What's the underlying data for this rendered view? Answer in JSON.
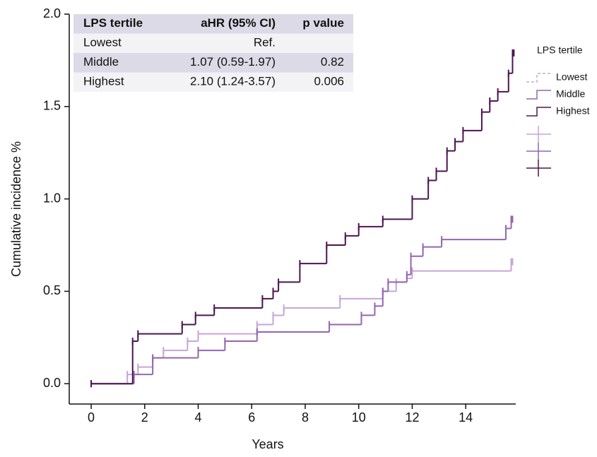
{
  "chart_data": {
    "type": "step",
    "x_label": "Years",
    "y_label": "Cumulative incidence %",
    "xlim": [
      -0.82,
      15.87
    ],
    "ylim": [
      -0.11,
      2.0
    ],
    "xticks": [
      0,
      2,
      4,
      6,
      8,
      10,
      12,
      14
    ],
    "yticks": [
      {
        "value": 0,
        "label": "0.0"
      },
      0.5,
      {
        "value": 1,
        "label": "1.0"
      },
      1.5,
      {
        "value": 2,
        "label": "2.0"
      }
    ],
    "legend_title": "LPS tertile",
    "series": [
      {
        "name": "Lowest",
        "color": "#c7a6d6",
        "x": [
          0,
          1.35,
          1.75,
          2.3,
          2.7,
          3.6,
          4.0,
          6.2,
          6.8,
          7.2,
          9.3,
          10.9,
          11.4,
          11.8,
          12.0,
          15.7,
          15.75
        ],
        "values": [
          0,
          0.05,
          0.09,
          0.14,
          0.18,
          0.23,
          0.27,
          0.32,
          0.37,
          0.41,
          0.46,
          0.5,
          0.55,
          0.57,
          0.61,
          0.66,
          0.66
        ]
      },
      {
        "name": "Middle",
        "color": "#9466ae",
        "x": [
          0,
          1.6,
          2.3,
          4.0,
          5.0,
          6.2,
          8.9,
          10.1,
          10.6,
          10.9,
          11.1,
          11.8,
          11.95,
          12.4,
          13.1,
          15.5,
          15.7,
          15.75
        ],
        "values": [
          0,
          0.05,
          0.14,
          0.18,
          0.23,
          0.28,
          0.32,
          0.37,
          0.42,
          0.5,
          0.55,
          0.59,
          0.69,
          0.74,
          0.78,
          0.84,
          0.89,
          0.89
        ]
      },
      {
        "name": "Highest",
        "color": "#4b1650",
        "x": [
          0,
          1.55,
          1.75,
          3.4,
          3.9,
          4.6,
          6.4,
          6.8,
          7.0,
          7.8,
          8.8,
          9.5,
          10.0,
          10.9,
          12.0,
          12.6,
          12.9,
          13.3,
          13.6,
          13.9,
          14.6,
          14.9,
          15.2,
          15.6,
          15.75,
          15.8
        ],
        "values": [
          0,
          0.23,
          0.27,
          0.32,
          0.37,
          0.41,
          0.46,
          0.5,
          0.55,
          0.65,
          0.75,
          0.8,
          0.85,
          0.89,
          1.0,
          1.1,
          1.15,
          1.26,
          1.31,
          1.37,
          1.47,
          1.53,
          1.58,
          1.68,
          1.79,
          1.79
        ]
      }
    ],
    "inset_table": {
      "columns": [
        "LPS tertile",
        "aHR (95% CI)",
        "p value"
      ],
      "rows": [
        [
          "Lowest",
          "Ref.",
          ""
        ],
        [
          "Middle",
          "1.07 (0.59-1.97)",
          "0.82"
        ],
        [
          "Highest",
          "2.10 (1.24-3.57)",
          "0.006"
        ]
      ]
    }
  }
}
